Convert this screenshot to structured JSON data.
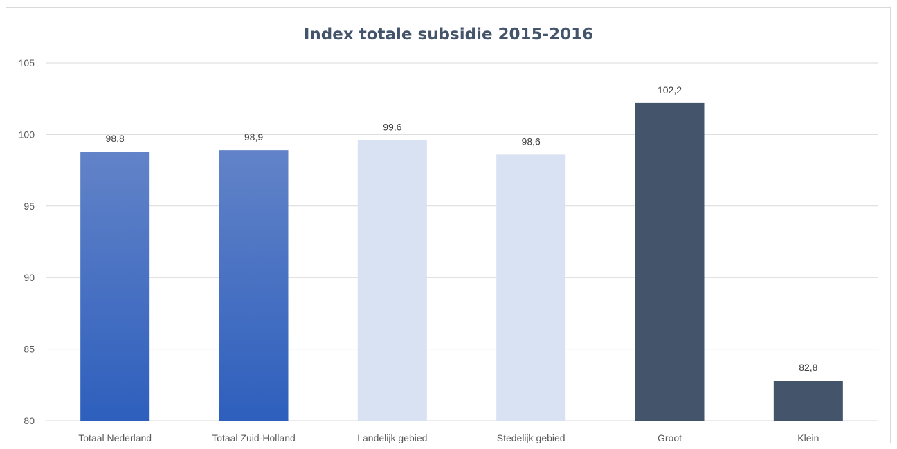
{
  "chart_data": {
    "type": "bar",
    "title": "Index totale subsidie 2015-2016",
    "categories": [
      "Totaal Nederland",
      "Totaal Zuid-Holland",
      "Landelijk gebied",
      "Stedelijk gebied",
      "Groot",
      "Klein"
    ],
    "values": [
      98.8,
      98.9,
      99.6,
      98.6,
      102.2,
      82.8
    ],
    "value_labels": [
      "98,8",
      "98,9",
      "99,6",
      "98,6",
      "102,2",
      "82,8"
    ],
    "ylim": [
      80,
      105
    ],
    "yticks": [
      "80",
      "85",
      "90",
      "95",
      "100",
      "105"
    ],
    "grid": true,
    "bar_colors": [
      "#3b6bc4",
      "#3b6bc4",
      "#d9e2f3",
      "#d9e2f3",
      "#44546a",
      "#44546a"
    ],
    "xlabel": "",
    "ylabel": ""
  }
}
